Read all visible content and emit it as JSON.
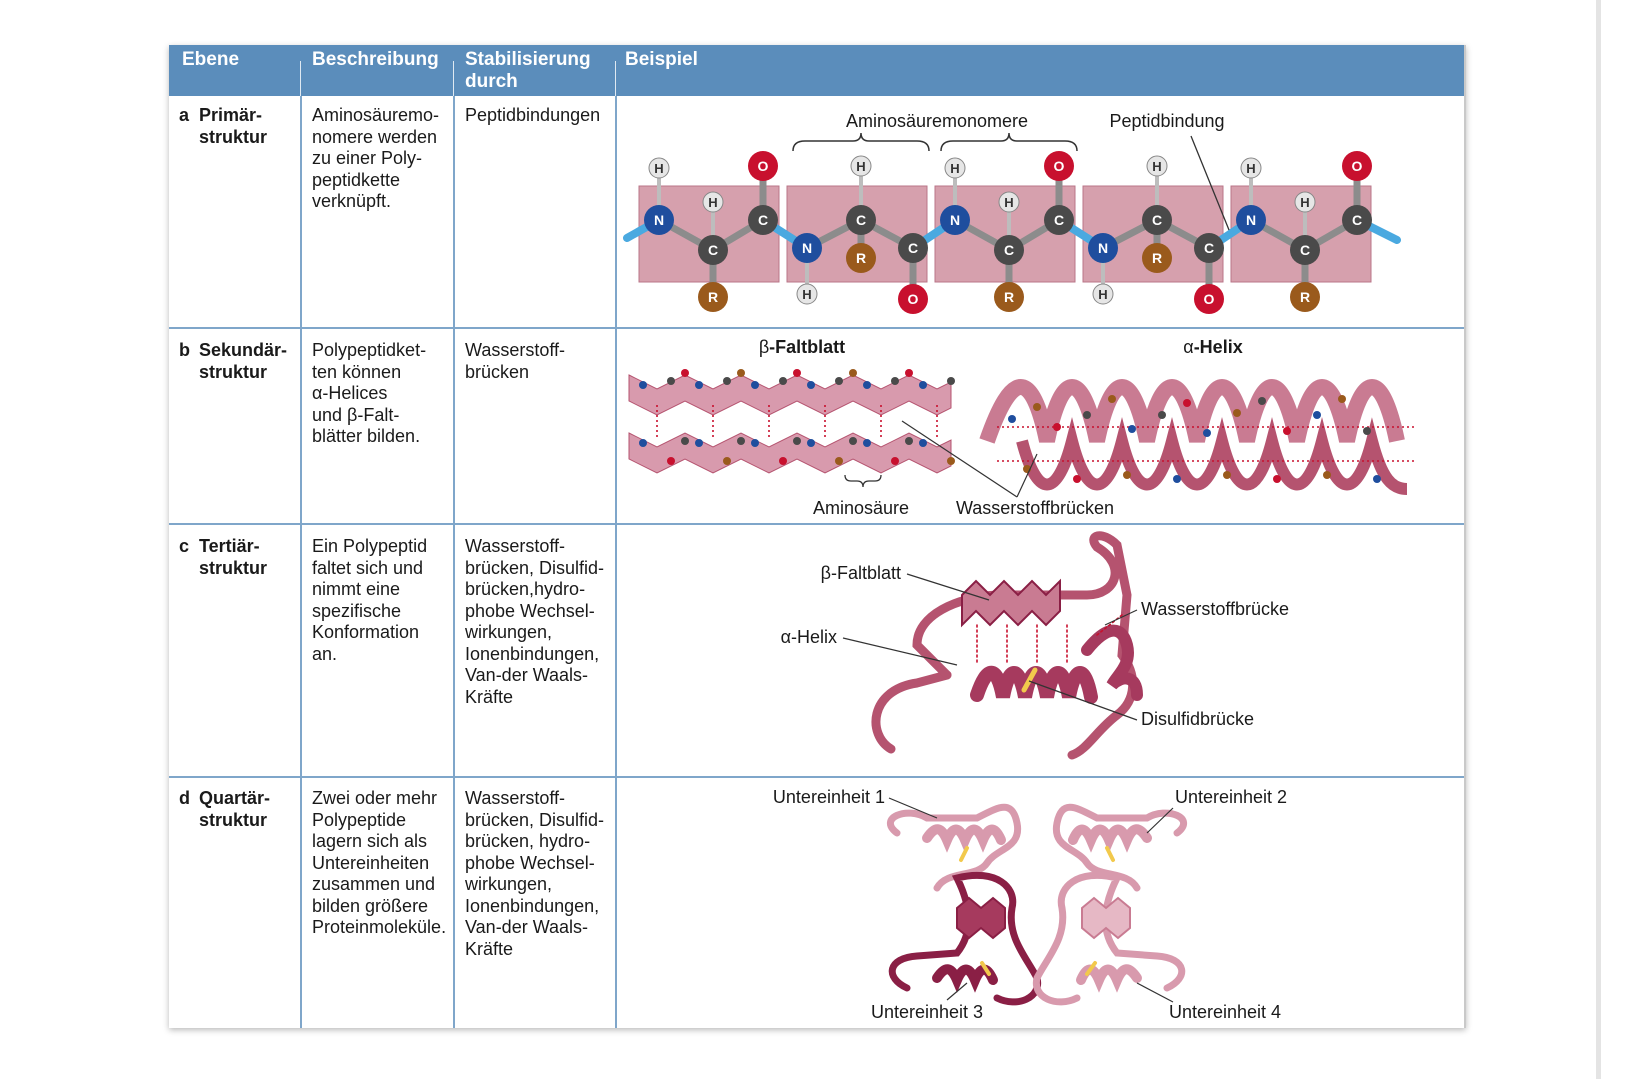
{
  "header": {
    "col_level": "Ebene",
    "col_description": "Beschreibung",
    "col_stabilization": "Stabilisierung\ndurch",
    "col_example": "Beispiel"
  },
  "rows": [
    {
      "letter": "a",
      "level": "Primär-\nstruktur",
      "description": "Aminosäuremo-\nnomere werden\nzu einer Poly-\npeptidkette\nverknüpft.",
      "stabilization": "Peptidbindungen"
    },
    {
      "letter": "b",
      "level": "Sekundär-\nstruktur",
      "description": "Polypeptidket-\nten können\nα-Helices\nund β-Falt-\nblätter bilden.",
      "stabilization": "Wasserstoff-\nbrücken"
    },
    {
      "letter": "c",
      "level": "Tertiär-\nstruktur",
      "description": "Ein Polypeptid\nfaltet sich und\nnimmt eine\nspezifische\nKonformation\nan.",
      "stabilization": "Wasserstoff-\nbrücken, Disulfid-\nbrücken,hydro-\nphobe Wechsel-\nwirkungen,\nIonenbindungen,\nVan-der Waals-\nKräfte"
    },
    {
      "letter": "d",
      "level": "Quartär-\nstruktur",
      "description": "Zwei oder mehr\nPolypeptide\nlagern sich als\nUntereinheiten\nzusammen und\nbilden größere\nProteinmoleküle.",
      "stabilization": "Wasserstoff-\nbrücken, Disulfid-\nbrücken, hydro-\nphobe Wechsel-\nwirkungen,\nIonenbindungen,\nVan-der Waals-\nKräfte"
    }
  ],
  "illustrations": {
    "primary": {
      "label_monomers": "Aminosäuremonomere",
      "label_peptide_bond": "Peptidbindung",
      "atom_h": "H",
      "atom_n": "N",
      "atom_c": "C",
      "atom_o": "O",
      "atom_r": "R"
    },
    "secondary": {
      "beta_symbol": "β",
      "beta_title": "-Faltblatt",
      "alpha_symbol": "α",
      "alpha_title": "-Helix",
      "label_amino_acid": "Aminosäure",
      "label_hbonds": "Wasserstoffbrücken"
    },
    "tertiary": {
      "label_beta": "β-Faltblatt",
      "label_alpha": "α-Helix",
      "label_hbond": "Wasserstoffbrücke",
      "label_disulfide": "Disulfidbrücke"
    },
    "quaternary": {
      "label_sub1": "Untereinheit 1",
      "label_sub2": "Untereinheit 2",
      "label_sub3": "Untereinheit 3",
      "label_sub4": "Untereinheit 4"
    }
  },
  "colors": {
    "header_bg": "#5b8dbb",
    "grid": "#7fa6ca",
    "ribbon": "#b5536f",
    "ribbon_dark": "#8a1f45",
    "ribbon_light": "#d89aad",
    "nitrogen": "#1f4e9e",
    "oxygen": "#c8102e",
    "carbon": "#4a4a4a",
    "rgroup": "#9a5a1c",
    "bond_blue": "#4aa9e0",
    "disulfide": "#f2c94c"
  }
}
